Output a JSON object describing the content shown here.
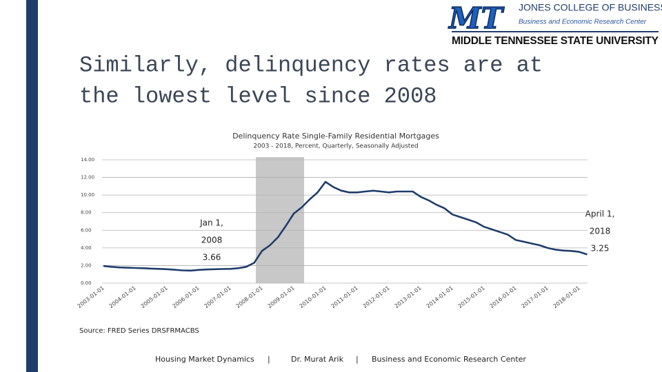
{
  "header": {
    "logo_mark": "MT",
    "college": "JONES COLLEGE OF BUSINESS",
    "center": "Business and Economic Research Center",
    "university": "MIDDLE TENNESSEE STATE UNIVERSITY"
  },
  "slide_title": [
    "Similarly, delinquency rates are at",
    "the lowest level since 2008"
  ],
  "chart_data": {
    "type": "line",
    "title": "Delinquency Rate Single-Family Residential Mortgages",
    "subtitle": "2003 - 2018, Percent, Quarterly, Seasonally Adjusted",
    "categories": [
      "2003-01-01",
      null,
      null,
      null,
      "2004-01-01",
      null,
      null,
      null,
      "2005-01-01",
      null,
      null,
      null,
      "2006-01-01",
      null,
      null,
      null,
      "2007-01-01",
      null,
      null,
      null,
      "2008-01-01",
      null,
      null,
      null,
      "2009-01-01",
      null,
      null,
      null,
      "2010-01-01",
      null,
      null,
      null,
      "2011-01-01",
      null,
      null,
      null,
      "2012-01-01",
      null,
      null,
      null,
      "2013-01-01",
      null,
      null,
      null,
      "2014-01-01",
      null,
      null,
      null,
      "2015-01-01",
      null,
      null,
      null,
      "2016-01-01",
      null,
      null,
      null,
      "2017-01-01",
      null,
      null,
      null,
      "2018-01-01",
      null
    ],
    "series": [
      {
        "name": "DRSFRMACBS",
        "color": "#1f3d6b",
        "values": [
          1.95,
          1.85,
          1.78,
          1.75,
          1.72,
          1.7,
          1.65,
          1.62,
          1.58,
          1.52,
          1.45,
          1.42,
          1.5,
          1.55,
          1.58,
          1.6,
          1.62,
          1.7,
          1.85,
          2.3,
          3.66,
          4.3,
          5.2,
          6.5,
          7.9,
          8.6,
          9.5,
          10.3,
          11.5,
          10.9,
          10.5,
          10.3,
          10.3,
          10.4,
          10.5,
          10.4,
          10.3,
          10.4,
          10.4,
          10.4,
          9.8,
          9.4,
          8.9,
          8.5,
          7.8,
          7.5,
          7.2,
          6.9,
          6.4,
          6.1,
          5.8,
          5.5,
          4.9,
          4.7,
          4.5,
          4.3,
          4.0,
          3.8,
          3.7,
          3.65,
          3.55,
          3.25
        ]
      }
    ],
    "ylim": [
      0,
      14
    ],
    "yticks": [
      {
        "value": 0,
        "label": "0.00"
      },
      {
        "value": 2,
        "label": "2.00"
      },
      {
        "value": 4,
        "label": "4.00"
      },
      {
        "value": 6,
        "label": "6.00"
      },
      {
        "value": 8,
        "label": "8.00"
      },
      {
        "value": 10,
        "label": "10.00"
      },
      {
        "value": 12,
        "label": "12.00"
      },
      {
        "value": 14,
        "label": "14.00"
      }
    ],
    "grid": true,
    "annotations": [
      {
        "lines": [
          "Jan 1,",
          "2008",
          "3.66"
        ]
      },
      {
        "lines": [
          "April 1,",
          "2018",
          "3.25"
        ]
      }
    ],
    "source": "Source: FRED Series DRSFRMACBS"
  },
  "footer": [
    "Housing Market Dynamics",
    "|",
    "Dr. Murat Arik",
    "|",
    "Business and Economic Research Center"
  ]
}
